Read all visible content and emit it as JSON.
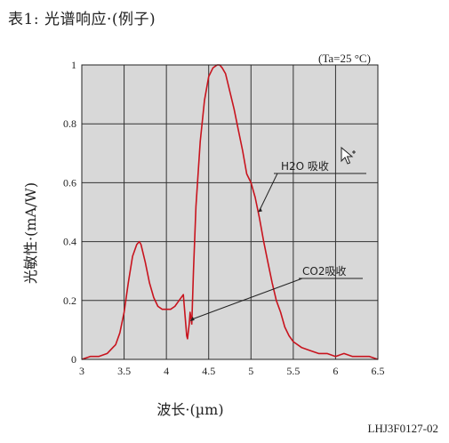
{
  "caption": "表1: 光谱响应·(例子)",
  "figure_id": "LHJ3F0127-02",
  "colors": {
    "curve": "#c8141e",
    "plot_bg": "#d8d8d8",
    "grid": "#333333"
  },
  "cursor_icon": "mouse-pointer-icon",
  "chart_data": {
    "type": "line",
    "title": "",
    "xlabel": "波长·(µm)",
    "ylabel": "光敏性·(mA/W)",
    "condition": "(Ta=25 °C)",
    "xlim": [
      3,
      6.5
    ],
    "ylim": [
      0,
      1
    ],
    "xticks": [
      3,
      3.5,
      4,
      4.5,
      5,
      5.5,
      6,
      6.5
    ],
    "xtick_labels": [
      "3",
      "3.5",
      "4",
      "4.5",
      "5",
      "5.5",
      "6",
      "6.5"
    ],
    "yticks": [
      0,
      0.2,
      0.4,
      0.6,
      0.8,
      1
    ],
    "ytick_labels": [
      "0",
      "0.2",
      "0.4",
      "0.6",
      "0.8",
      "1"
    ],
    "grid": true,
    "annotations": [
      {
        "text": "H2O 吸收",
        "target": [
          5.08,
          0.5
        ]
      },
      {
        "text": "CO2吸收",
        "target": [
          4.28,
          0.13
        ]
      }
    ],
    "series": [
      {
        "x": [
          3.0,
          3.1,
          3.2,
          3.3,
          3.4,
          3.45,
          3.5,
          3.55,
          3.6,
          3.65,
          3.68,
          3.7,
          3.75,
          3.8,
          3.85,
          3.9,
          3.95,
          4.0,
          4.05,
          4.1,
          4.15,
          4.2,
          4.22,
          4.24,
          4.25,
          4.27,
          4.28,
          4.3,
          4.32,
          4.35,
          4.4,
          4.45,
          4.5,
          4.55,
          4.6,
          4.63,
          4.66,
          4.7,
          4.75,
          4.8,
          4.85,
          4.9,
          4.95,
          5.0,
          5.05,
          5.1,
          5.15,
          5.2,
          5.25,
          5.3,
          5.35,
          5.4,
          5.45,
          5.5,
          5.6,
          5.7,
          5.8,
          5.9,
          6.0,
          6.1,
          6.2,
          6.3,
          6.4,
          6.5
        ],
        "y": [
          0.0,
          0.01,
          0.01,
          0.02,
          0.05,
          0.09,
          0.16,
          0.26,
          0.35,
          0.39,
          0.4,
          0.39,
          0.33,
          0.26,
          0.21,
          0.18,
          0.17,
          0.17,
          0.17,
          0.18,
          0.2,
          0.22,
          0.15,
          0.08,
          0.07,
          0.12,
          0.16,
          0.12,
          0.3,
          0.52,
          0.74,
          0.88,
          0.96,
          0.99,
          1.0,
          1.0,
          0.99,
          0.97,
          0.91,
          0.85,
          0.78,
          0.71,
          0.63,
          0.6,
          0.55,
          0.48,
          0.4,
          0.33,
          0.26,
          0.2,
          0.16,
          0.11,
          0.08,
          0.06,
          0.04,
          0.03,
          0.02,
          0.02,
          0.01,
          0.02,
          0.01,
          0.01,
          0.01,
          0.0
        ]
      }
    ]
  }
}
